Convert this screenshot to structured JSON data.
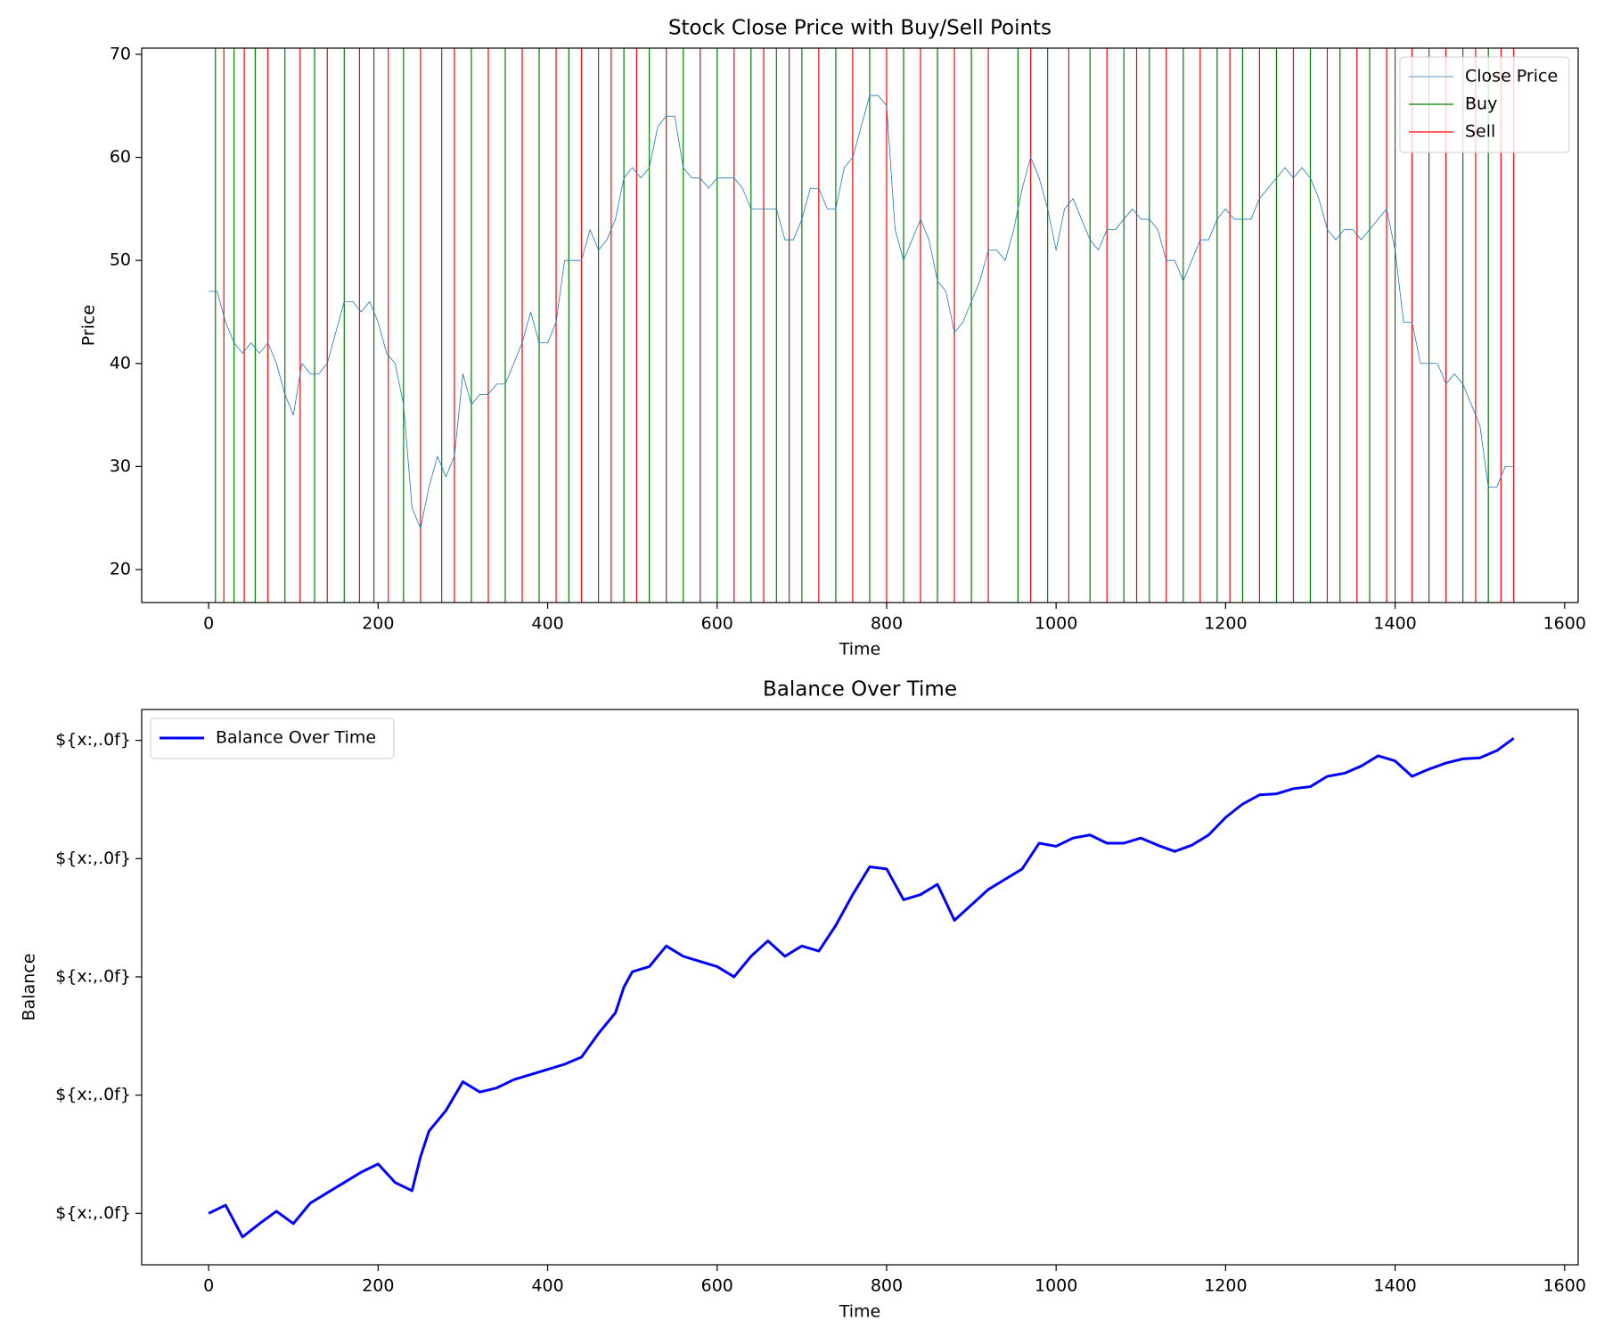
{
  "chart_data": [
    {
      "type": "line",
      "title": "Stock Close Price with Buy/Sell Points",
      "xlabel": "Time",
      "ylabel": "Price",
      "legend": "upper right",
      "x": [
        0,
        10,
        20,
        30,
        40,
        50,
        60,
        70,
        80,
        90,
        100,
        110,
        120,
        130,
        140,
        150,
        160,
        170,
        180,
        190,
        200,
        210,
        220,
        230,
        240,
        250,
        260,
        270,
        280,
        290,
        300,
        310,
        320,
        330,
        340,
        350,
        360,
        370,
        380,
        390,
        400,
        410,
        420,
        430,
        440,
        450,
        460,
        470,
        480,
        490,
        500,
        510,
        520,
        530,
        540,
        550,
        560,
        570,
        580,
        590,
        600,
        610,
        620,
        630,
        640,
        650,
        660,
        670,
        680,
        690,
        700,
        710,
        720,
        730,
        740,
        750,
        760,
        770,
        780,
        790,
        800,
        810,
        820,
        830,
        840,
        850,
        860,
        870,
        880,
        890,
        900,
        910,
        920,
        930,
        940,
        950,
        960,
        970,
        980,
        990,
        1000,
        1010,
        1020,
        1030,
        1040,
        1050,
        1060,
        1070,
        1080,
        1090,
        1100,
        1110,
        1120,
        1130,
        1140,
        1150,
        1160,
        1170,
        1180,
        1190,
        1200,
        1210,
        1220,
        1230,
        1240,
        1250,
        1260,
        1270,
        1280,
        1290,
        1300,
        1310,
        1320,
        1330,
        1340,
        1350,
        1360,
        1370,
        1380,
        1390,
        1400,
        1410,
        1420,
        1430,
        1440,
        1450,
        1460,
        1470,
        1480,
        1490,
        1500,
        1510,
        1520,
        1530,
        1540
      ],
      "series": [
        {
          "name": "Close Price",
          "color": "#1f77b4",
          "width": 0.8,
          "values": [
            47,
            47,
            44,
            42,
            41,
            42,
            41,
            42,
            40,
            37,
            35,
            40,
            39,
            39,
            40,
            43,
            46,
            46,
            45,
            46,
            44,
            41,
            40,
            36,
            26,
            24,
            28,
            31,
            29,
            31,
            39,
            36,
            37,
            37,
            38,
            38,
            40,
            42,
            45,
            42,
            42,
            44,
            50,
            50,
            50,
            53,
            51,
            52,
            54,
            58,
            59,
            58,
            59,
            63,
            64,
            64,
            59,
            58,
            58,
            57,
            58,
            58,
            58,
            57,
            55,
            55,
            55,
            55,
            52,
            52,
            54,
            57,
            57,
            55,
            55,
            59,
            60,
            63,
            66,
            66,
            65,
            53,
            50,
            52,
            54,
            52,
            48,
            47,
            43,
            44,
            46,
            48,
            51,
            51,
            50,
            53,
            57,
            60,
            58,
            55,
            51,
            55,
            56,
            54,
            52,
            51,
            53,
            53,
            54,
            55,
            54,
            54,
            53,
            50,
            50,
            48,
            50,
            52,
            52,
            54,
            55,
            54,
            54,
            54,
            56,
            57,
            58,
            59,
            58,
            59,
            58,
            56,
            53,
            52,
            53,
            53,
            52,
            53,
            54,
            55,
            51,
            44,
            44,
            40,
            40,
            40,
            38,
            39,
            38,
            36,
            34,
            28,
            28,
            30,
            30
          ]
        }
      ],
      "events": [
        {
          "name": "Buy",
          "color": "green",
          "x": [
            8,
            30,
            55,
            90,
            125,
            160,
            195,
            230,
            275,
            310,
            350,
            390,
            425,
            460,
            490,
            520,
            560,
            600,
            640,
            670,
            700,
            740,
            780,
            820,
            860,
            900,
            955,
            990,
            1040,
            1080,
            1110,
            1150,
            1190,
            1220,
            1260,
            1300,
            1335,
            1370,
            1400,
            1440,
            1480,
            1510
          ]
        },
        {
          "name": "Sell",
          "color": "red",
          "x": [
            18,
            42,
            70,
            108,
            140,
            178,
            212,
            250,
            290,
            330,
            370,
            410,
            440,
            475,
            505,
            540,
            580,
            620,
            655,
            685,
            720,
            760,
            800,
            840,
            880,
            920,
            970,
            1015,
            1060,
            1095,
            1130,
            1170,
            1205,
            1240,
            1280,
            1320,
            1355,
            1390,
            1420,
            1460,
            1495,
            1525,
            1540
          ]
        }
      ],
      "xlim": [
        -79,
        1616
      ],
      "xticks": [
        0,
        200,
        400,
        600,
        800,
        1000,
        1200,
        1400,
        1600
      ],
      "ylim": [
        16.8,
        70.6
      ],
      "yticks": [
        20,
        30,
        40,
        50,
        60,
        70
      ]
    },
    {
      "type": "line",
      "title": "Balance Over Time",
      "xlabel": "Time",
      "ylabel": "Balance",
      "legend": "upper left",
      "x": [
        0,
        20,
        40,
        60,
        80,
        100,
        120,
        140,
        160,
        180,
        200,
        220,
        240,
        250,
        260,
        280,
        300,
        320,
        340,
        360,
        380,
        400,
        420,
        440,
        460,
        480,
        490,
        500,
        520,
        540,
        560,
        580,
        600,
        620,
        640,
        660,
        680,
        700,
        720,
        740,
        760,
        780,
        800,
        820,
        840,
        860,
        880,
        900,
        920,
        940,
        960,
        980,
        1000,
        1020,
        1040,
        1060,
        1080,
        1100,
        1120,
        1140,
        1160,
        1180,
        1200,
        1220,
        1240,
        1260,
        1280,
        1300,
        1320,
        1340,
        1360,
        1380,
        1400,
        1420,
        1440,
        1460,
        1480,
        1500,
        1520,
        1540
      ],
      "series": [
        {
          "name": "Balance Over Time",
          "color": "blue",
          "width": 3,
          "values": [
            10000,
            10139,
            9600,
            9826,
            10035,
            9826,
            10174,
            10348,
            10522,
            10696,
            10835,
            10522,
            10383,
            10957,
            11391,
            11739,
            12226,
            12052,
            12122,
            12261,
            12348,
            12435,
            12522,
            12643,
            13043,
            13391,
            13826,
            14087,
            14174,
            14522,
            14348,
            14261,
            14174,
            14000,
            14348,
            14609,
            14348,
            14522,
            14435,
            14870,
            15391,
            15861,
            15826,
            15304,
            15391,
            15565,
            14957,
            15217,
            15478,
            15652,
            15826,
            16261,
            16209,
            16348,
            16400,
            16261,
            16261,
            16348,
            16226,
            16122,
            16226,
            16400,
            16696,
            16922,
            17078,
            17096,
            17183,
            17217,
            17391,
            17443,
            17565,
            17739,
            17652,
            17391,
            17513,
            17617,
            17687,
            17704,
            17826,
            18035
          ]
        }
      ],
      "xlim": [
        -79,
        1616
      ],
      "xticks": [
        0,
        200,
        400,
        600,
        800,
        1000,
        1200,
        1400,
        1600
      ],
      "ylim": [
        9130,
        18522
      ],
      "yticks": [
        {
          "value": 10000,
          "label": "${x:,.0f}"
        },
        {
          "value": 12000,
          "label": "${x:,.0f}"
        },
        {
          "value": 14000,
          "label": "${x:,.0f}"
        },
        {
          "value": 16000,
          "label": "${x:,.0f}"
        },
        {
          "value": 18000,
          "label": "${x:,.0f}"
        }
      ]
    }
  ]
}
